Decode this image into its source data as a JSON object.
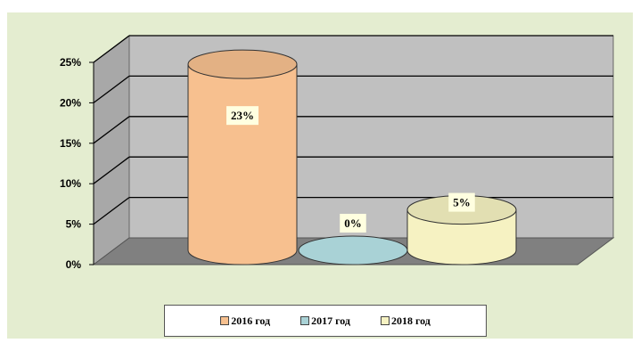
{
  "chart_data": {
    "type": "bar",
    "style": "3d-cylinder",
    "categories": [
      "2016 год",
      "2017 год",
      "2018 год"
    ],
    "series": [
      {
        "name": "2016 год",
        "value": 23,
        "label": "23%",
        "color": "#F7C08F"
      },
      {
        "name": "2017 год",
        "value": 0,
        "label": "0%",
        "color": "#A9D2D6"
      },
      {
        "name": "2018 год",
        "value": 5,
        "label": "5%",
        "color": "#F6F2C2"
      }
    ],
    "ylim": [
      0,
      25
    ],
    "yticks": [
      "0%",
      "5%",
      "10%",
      "15%",
      "20%",
      "25%"
    ],
    "grid": true,
    "legend_position": "bottom",
    "colors": {
      "chart_area_background": "#E4EDD0",
      "back_wall": "#C0C0C0",
      "side_wall": "#A8A8A8",
      "floor": "#808080",
      "gridline": "#000000"
    }
  }
}
